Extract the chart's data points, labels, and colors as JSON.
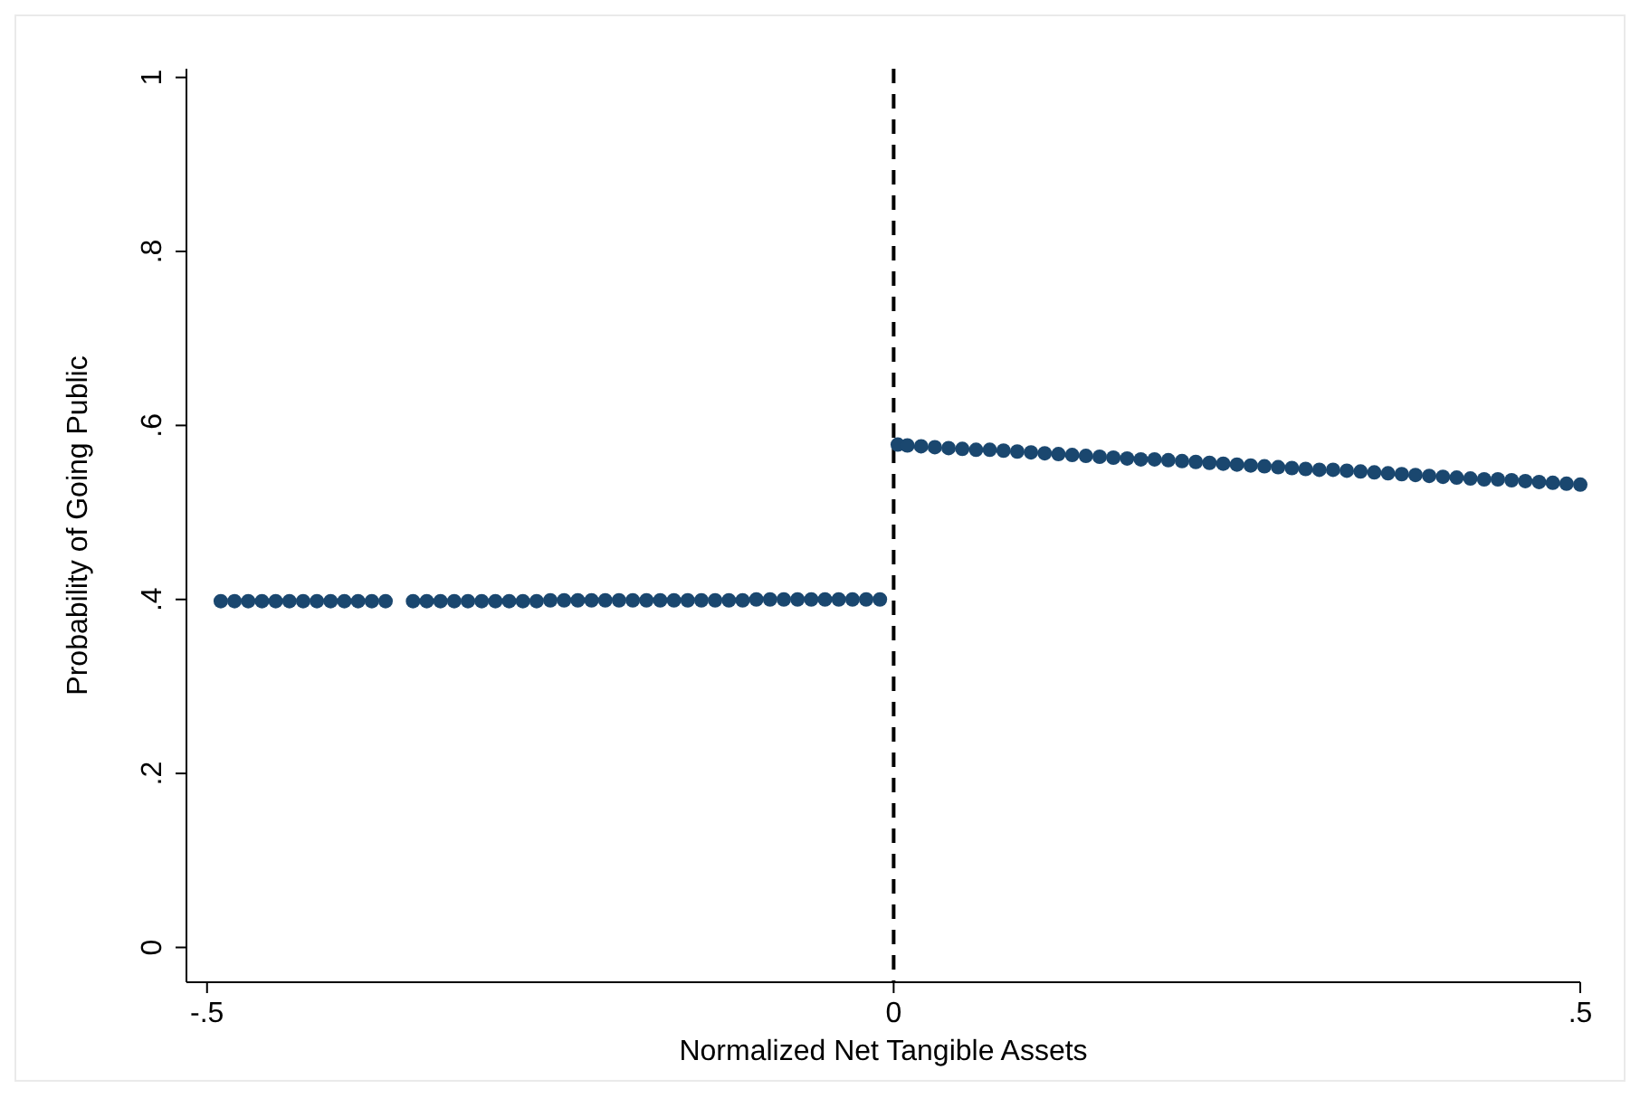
{
  "chart_data": {
    "type": "scatter",
    "xlabel": "Normalized Net Tangible Assets",
    "ylabel": "Probability of Going Public",
    "xlim": [
      -0.515,
      0.5
    ],
    "ylim": [
      -0.04,
      1.01
    ],
    "xticks": [
      {
        "value": -0.5,
        "label": "-.5"
      },
      0,
      {
        "value": 0.5,
        "label": ".5"
      }
    ],
    "yticks": [
      0,
      {
        "value": 0.2,
        "label": ".2"
      },
      {
        "value": 0.4,
        "label": ".4"
      },
      {
        "value": 0.6,
        "label": ".6"
      },
      {
        "value": 0.8,
        "label": ".8"
      },
      1
    ],
    "grid": false,
    "marker": "circle",
    "ref_lines": [
      {
        "axis": "x",
        "value": 0,
        "color": "#000000",
        "line_style": "dashed"
      }
    ],
    "series": [
      {
        "color": "#1a476f",
        "x": [
          -0.49,
          -0.48,
          -0.47,
          -0.46,
          -0.45,
          -0.44,
          -0.43,
          -0.42,
          -0.41,
          -0.4,
          -0.39,
          -0.38,
          -0.37,
          -0.35,
          -0.34,
          -0.33,
          -0.32,
          -0.31,
          -0.3,
          -0.29,
          -0.28,
          -0.27,
          -0.26,
          -0.25,
          -0.24,
          -0.23,
          -0.22,
          -0.21,
          -0.2,
          -0.19,
          -0.18,
          -0.17,
          -0.16,
          -0.15,
          -0.14,
          -0.13,
          -0.12,
          -0.11,
          -0.1,
          -0.09,
          -0.08,
          -0.07,
          -0.06,
          -0.05,
          -0.04,
          -0.03,
          -0.02,
          -0.01,
          0.003,
          0.01,
          0.02,
          0.03,
          0.04,
          0.05,
          0.06,
          0.07,
          0.08,
          0.09,
          0.1,
          0.11,
          0.12,
          0.13,
          0.14,
          0.15,
          0.16,
          0.17,
          0.18,
          0.19,
          0.2,
          0.21,
          0.22,
          0.23,
          0.24,
          0.25,
          0.26,
          0.27,
          0.28,
          0.29,
          0.3,
          0.31,
          0.32,
          0.33,
          0.34,
          0.35,
          0.36,
          0.37,
          0.38,
          0.39,
          0.4,
          0.41,
          0.42,
          0.43,
          0.44,
          0.45,
          0.46,
          0.47,
          0.48,
          0.49,
          0.5
        ],
        "values": [
          0.398,
          0.398,
          0.398,
          0.398,
          0.398,
          0.398,
          0.398,
          0.398,
          0.398,
          0.398,
          0.398,
          0.398,
          0.398,
          0.398,
          0.398,
          0.398,
          0.398,
          0.398,
          0.398,
          0.398,
          0.398,
          0.398,
          0.398,
          0.399,
          0.399,
          0.399,
          0.399,
          0.399,
          0.399,
          0.399,
          0.399,
          0.399,
          0.399,
          0.399,
          0.399,
          0.399,
          0.399,
          0.399,
          0.4,
          0.4,
          0.4,
          0.4,
          0.4,
          0.4,
          0.4,
          0.4,
          0.4,
          0.4,
          0.578,
          0.577,
          0.576,
          0.575,
          0.574,
          0.573,
          0.572,
          0.572,
          0.571,
          0.57,
          0.569,
          0.568,
          0.567,
          0.566,
          0.565,
          0.564,
          0.563,
          0.562,
          0.561,
          0.561,
          0.56,
          0.559,
          0.558,
          0.557,
          0.556,
          0.555,
          0.554,
          0.553,
          0.552,
          0.551,
          0.55,
          0.549,
          0.549,
          0.548,
          0.547,
          0.546,
          0.545,
          0.544,
          0.543,
          0.542,
          0.541,
          0.54,
          0.539,
          0.538,
          0.538,
          0.537,
          0.536,
          0.535,
          0.534,
          0.533,
          0.532
        ]
      }
    ]
  }
}
